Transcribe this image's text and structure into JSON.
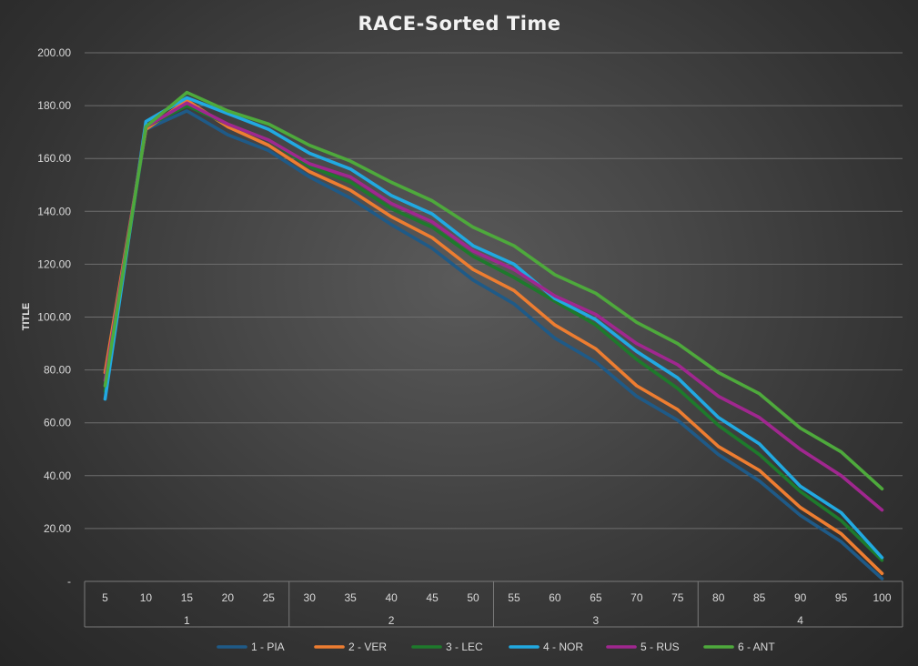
{
  "chart_data": {
    "type": "line",
    "title": "RACE-Sorted Time",
    "ylabel": "TITLE",
    "xlabel": "",
    "ylim": [
      0,
      200
    ],
    "y_ticks": [
      "-",
      "20.00",
      "40.00",
      "60.00",
      "80.00",
      "100.00",
      "120.00",
      "140.00",
      "160.00",
      "180.00",
      "200.00"
    ],
    "grid": true,
    "legend_position": "bottom",
    "x": [
      5,
      10,
      15,
      20,
      25,
      30,
      35,
      40,
      45,
      50,
      55,
      60,
      65,
      70,
      75,
      80,
      85,
      90,
      95,
      100
    ],
    "groups": [
      {
        "label": "1",
        "from": 0,
        "to": 4
      },
      {
        "label": "2",
        "from": 5,
        "to": 9
      },
      {
        "label": "3",
        "from": 10,
        "to": 14
      },
      {
        "label": "4",
        "from": 15,
        "to": 19
      }
    ],
    "series": [
      {
        "name": "1 - PIA",
        "color": "#1f5a87",
        "values": [
          74,
          171,
          178,
          169,
          163,
          153,
          145,
          135,
          126,
          114,
          105,
          92,
          83,
          70,
          61,
          48,
          38,
          25,
          15,
          1
        ]
      },
      {
        "name": "2 - VER",
        "color": "#ed7d31",
        "values": [
          79,
          171,
          182,
          172,
          165,
          155,
          148,
          138,
          130,
          118,
          110,
          97,
          88,
          74,
          65,
          51,
          42,
          28,
          18,
          3
        ]
      },
      {
        "name": "3 - LEC",
        "color": "#1e7a2c",
        "values": [
          72,
          172,
          180,
          173,
          167,
          157,
          151,
          141,
          134,
          123,
          115,
          106,
          97,
          84,
          73,
          59,
          48,
          34,
          23,
          8
        ]
      },
      {
        "name": "4 - NOR",
        "color": "#21a9e1",
        "values": [
          69,
          174,
          183,
          177,
          171,
          162,
          156,
          146,
          139,
          127,
          120,
          107,
          99,
          87,
          77,
          62,
          52,
          36,
          26,
          9
        ]
      },
      {
        "name": "5 - RUS",
        "color": "#a0278f",
        "values": [
          76,
          172,
          181,
          173,
          167,
          158,
          153,
          143,
          136,
          125,
          118,
          108,
          101,
          90,
          82,
          70,
          62,
          50,
          40,
          27
        ]
      },
      {
        "name": "6 - ANT",
        "color": "#4ea93c",
        "values": [
          74,
          172,
          185,
          178,
          173,
          165,
          159,
          151,
          144,
          134,
          127,
          116,
          109,
          98,
          90,
          79,
          71,
          58,
          49,
          35
        ]
      }
    ]
  }
}
